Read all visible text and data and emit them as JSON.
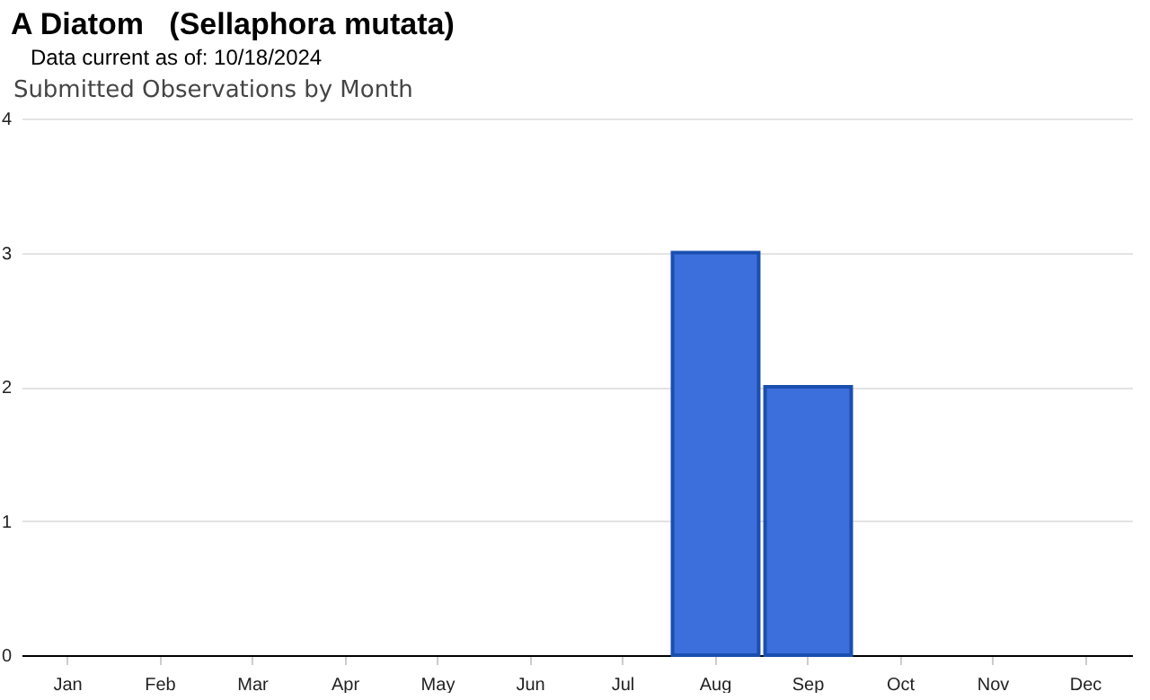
{
  "chart_data": {
    "type": "bar",
    "title": "A Diatom   (Sellaphora mutata)",
    "subtitle": "Data current as of: 10/18/2024",
    "annotations": [
      "Submitted Observations by Month"
    ],
    "categories": [
      "Jan",
      "Feb",
      "Mar",
      "Apr",
      "May",
      "Jun",
      "Jul",
      "Aug",
      "Sep",
      "Oct",
      "Nov",
      "Dec"
    ],
    "values": [
      0,
      0,
      0,
      0,
      0,
      0,
      0,
      3,
      2,
      0,
      0,
      0
    ],
    "color": "#3d6fdc",
    "ylim": [
      0,
      4
    ],
    "yticks": [
      0,
      1,
      2,
      3,
      4
    ],
    "grid": "y"
  }
}
